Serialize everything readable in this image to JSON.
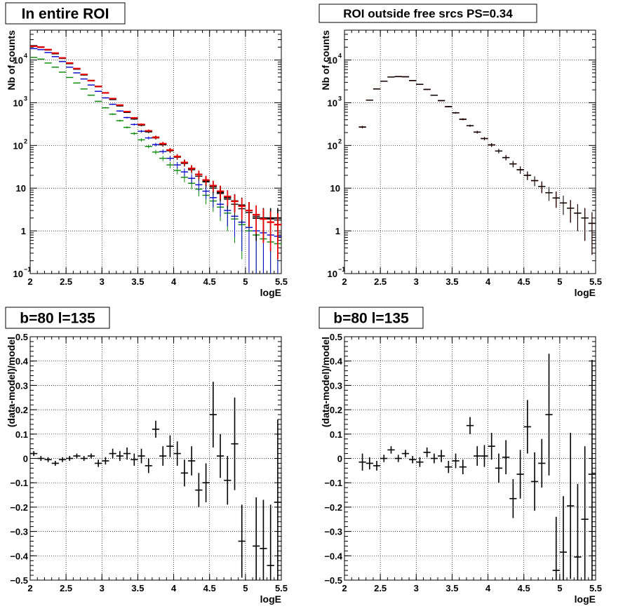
{
  "chart_data": [
    {
      "type": "scatter",
      "title": "In entire ROI",
      "xlabel": "logE",
      "ylabel": "Nb of counts",
      "xlim": [
        2,
        5.5
      ],
      "ylim": [
        0.1,
        50000
      ],
      "yscale": "log",
      "grid": true,
      "xticks": [
        "2",
        "2.5",
        "3",
        "3.5",
        "4",
        "4.5",
        "5",
        "5.5"
      ],
      "yticks": [
        {
          "v": 0.1,
          "base": "10",
          "exp": "−1"
        },
        {
          "v": 1,
          "base": "1",
          "exp": ""
        },
        {
          "v": 10,
          "base": "10",
          "exp": ""
        },
        {
          "v": 100,
          "base": "10",
          "exp": "2"
        },
        {
          "v": 1000,
          "base": "10",
          "exp": "3"
        },
        {
          "v": 10000,
          "base": "10",
          "exp": "4"
        }
      ],
      "series": [
        {
          "color": "#008800",
          "x": [
            2.05,
            2.15,
            2.25,
            2.35,
            2.45,
            2.55,
            2.65,
            2.75,
            2.85,
            2.95,
            3.05,
            3.15,
            3.25,
            3.35,
            3.45,
            3.55,
            3.65,
            3.75,
            3.85,
            3.95,
            4.05,
            4.15,
            4.25,
            4.35,
            4.45,
            4.55,
            4.65,
            4.75,
            4.85,
            4.95,
            5.05,
            5.15,
            5.25,
            5.35,
            5.45
          ],
          "y": [
            11500,
            10500,
            8500,
            6800,
            5200,
            3900,
            2900,
            2100,
            1500,
            1080,
            760,
            540,
            380,
            265,
            190,
            135,
            95,
            70,
            50,
            35,
            26,
            18,
            13,
            9.5,
            6.8,
            5,
            3.6,
            2.6,
            1.9,
            1.4,
            1.0,
            0.8,
            0.65,
            0.55,
            0.5
          ]
        },
        {
          "color": "#0000cc",
          "x": [
            2.05,
            2.15,
            2.25,
            2.35,
            2.45,
            2.55,
            2.65,
            2.75,
            2.85,
            2.95,
            3.05,
            3.15,
            3.25,
            3.35,
            3.45,
            3.55,
            3.65,
            3.75,
            3.85,
            3.95,
            4.05,
            4.15,
            4.25,
            4.35,
            4.45,
            4.55,
            4.65,
            4.75,
            4.85,
            4.95,
            5.05,
            5.15,
            5.25,
            5.35,
            5.45
          ],
          "y": [
            18500,
            17500,
            15000,
            12000,
            9200,
            6800,
            5000,
            3600,
            2600,
            1850,
            1300,
            920,
            640,
            450,
            310,
            215,
            150,
            105,
            72,
            50,
            35,
            24,
            17,
            12,
            8.5,
            6,
            4.2,
            3,
            2.2,
            1.6,
            1.2,
            1.0,
            0.9,
            0.8,
            0.75
          ]
        },
        {
          "color": "#000000",
          "x": [
            2.05,
            2.15,
            2.25,
            2.35,
            2.45,
            2.55,
            2.65,
            2.75,
            2.85,
            2.95,
            3.05,
            3.15,
            3.25,
            3.35,
            3.45,
            3.55,
            3.65,
            3.75,
            3.85,
            3.95,
            4.05,
            4.15,
            4.25,
            4.35,
            4.45,
            4.55,
            4.65,
            4.75,
            4.85,
            4.95,
            5.05,
            5.15,
            5.25,
            5.35,
            5.45
          ],
          "y": [
            21000,
            20000,
            17500,
            14000,
            11000,
            8300,
            6100,
            4500,
            3300,
            2400,
            1700,
            1200,
            850,
            600,
            420,
            300,
            210,
            150,
            105,
            75,
            53,
            38,
            27,
            19,
            14,
            10,
            7.5,
            5.5,
            4.2,
            3.3,
            2.7,
            2.2,
            2.0,
            1.9,
            1.8
          ]
        },
        {
          "color": "#ee0000",
          "x": [
            2.05,
            2.15,
            2.25,
            2.35,
            2.45,
            2.55,
            2.65,
            2.75,
            2.85,
            2.95,
            3.05,
            3.15,
            3.25,
            3.35,
            3.45,
            3.55,
            3.65,
            3.75,
            3.85,
            3.95,
            4.05,
            4.15,
            4.25,
            4.35,
            4.45,
            4.55,
            4.65,
            4.75,
            4.85,
            4.95,
            5.05,
            5.15,
            5.25,
            5.35,
            5.45
          ],
          "y": [
            21000,
            20000,
            17500,
            14500,
            11200,
            8500,
            6300,
            4600,
            3300,
            2400,
            1700,
            1250,
            880,
            620,
            440,
            310,
            220,
            155,
            110,
            78,
            55,
            40,
            29,
            21,
            15.5,
            11.5,
            8.5,
            6.4,
            4.9,
            3.8,
            3,
            2.4,
            1.9,
            1.6,
            1.4
          ]
        },
        {
          "color": "#000000",
          "x": [
            2.05,
            2.15,
            2.25,
            2.35,
            2.45,
            2.55,
            2.65,
            2.75,
            2.85,
            2.95,
            3.05,
            3.15,
            3.25,
            3.35,
            3.45,
            3.55,
            3.65,
            3.75,
            3.85,
            3.95,
            4.05,
            4.15,
            4.25,
            4.35,
            4.45,
            4.55,
            4.65,
            4.75,
            4.85,
            4.95,
            5.05,
            5.15,
            5.25,
            5.35,
            5.45
          ],
          "y": [
            21500,
            20000,
            17300,
            14200,
            11100,
            8300,
            6200,
            4500,
            3300,
            2400,
            1700,
            1200,
            850,
            600,
            420,
            300,
            210,
            155,
            105,
            78,
            55,
            40,
            29,
            21,
            15,
            11,
            8,
            6,
            5,
            4,
            3,
            2,
            2,
            2,
            2
          ]
        },
        {
          "color": "#ee0000",
          "x": [
            2.05,
            2.15,
            2.25,
            2.35,
            2.45,
            2.55,
            2.65,
            2.75,
            2.85,
            2.95,
            3.05,
            3.15,
            3.25,
            3.35,
            3.45,
            3.55,
            3.65,
            3.75,
            3.85,
            3.95,
            4.05,
            4.15,
            4.25,
            4.35,
            4.45,
            4.55,
            4.65,
            4.75,
            4.85,
            4.95,
            5.05,
            5.15,
            5.25,
            5.35,
            5.45
          ],
          "y": [
            21000,
            20000,
            17500,
            14500,
            11200,
            8500,
            6300,
            4600,
            3300,
            2400,
            1700,
            1250,
            880,
            620,
            440,
            310,
            220,
            155,
            110,
            78,
            55,
            40,
            29,
            21,
            15.5,
            11.5,
            8.5,
            6.4,
            4.9,
            3.8,
            3,
            2.4,
            1.9,
            1.6,
            1.4
          ]
        }
      ]
    },
    {
      "type": "scatter",
      "title": "ROI outside free srcs PS=0.34",
      "xlabel": "logE",
      "ylabel": "Nb of counts",
      "xlim": [
        2,
        5.5
      ],
      "ylim": [
        0.1,
        50000
      ],
      "yscale": "log",
      "grid": true,
      "xticks": [
        "2",
        "2.5",
        "3",
        "3.5",
        "4",
        "4.5",
        "5",
        "5.5"
      ],
      "yticks": [
        {
          "v": 0.1,
          "base": "10",
          "exp": "−1"
        },
        {
          "v": 1,
          "base": "1",
          "exp": ""
        },
        {
          "v": 10,
          "base": "10",
          "exp": ""
        },
        {
          "v": 100,
          "base": "10",
          "exp": "2"
        },
        {
          "v": 1000,
          "base": "10",
          "exp": "3"
        },
        {
          "v": 10000,
          "base": "10",
          "exp": "4"
        }
      ],
      "series": [
        {
          "color": "#000000",
          "x": [
            2.25,
            2.35,
            2.45,
            2.55,
            2.65,
            2.75,
            2.85,
            2.95,
            3.05,
            3.15,
            3.25,
            3.35,
            3.45,
            3.55,
            3.65,
            3.75,
            3.85,
            3.95,
            4.05,
            4.15,
            4.25,
            4.35,
            4.45,
            4.55,
            4.65,
            4.75,
            4.85,
            4.95,
            5.05,
            5.15,
            5.25,
            5.35,
            5.45
          ],
          "y": [
            270,
            1150,
            2100,
            3200,
            4000,
            4100,
            4050,
            3300,
            2700,
            2050,
            1500,
            1120,
            810,
            580,
            410,
            290,
            205,
            145,
            103,
            74,
            52,
            37,
            27,
            20,
            15,
            11,
            7.8,
            5.9,
            4.5,
            3.4,
            2.6,
            2.0,
            1.5
          ]
        },
        {
          "color": "#ee0000",
          "x": [
            2.25,
            2.35,
            2.45,
            2.55,
            2.65,
            2.75,
            2.85,
            2.95,
            3.05,
            3.15,
            3.25,
            3.35,
            3.45,
            3.55,
            3.65,
            3.75,
            3.85,
            3.95,
            4.05,
            4.15,
            4.25,
            4.35,
            4.45,
            4.55,
            4.65,
            4.75,
            4.85,
            4.95,
            5.05,
            5.15,
            5.25,
            5.35,
            5.45
          ],
          "y": [
            270,
            1150,
            2100,
            3200,
            4000,
            4100,
            4050,
            3300,
            2700,
            2050,
            1500,
            1120,
            810,
            580,
            410,
            290,
            205,
            145,
            103,
            74,
            52,
            37,
            27,
            20,
            15,
            11,
            7.8,
            5.9,
            4.5,
            3.4,
            2.6,
            2.0,
            1.5
          ]
        },
        {
          "color": "#000000",
          "x": [
            2.25,
            2.35,
            2.45,
            2.55,
            2.65,
            2.75,
            2.85,
            2.95,
            3.05,
            3.15,
            3.25,
            3.35,
            3.45,
            3.55,
            3.65,
            3.75,
            3.85,
            3.95,
            4.05,
            4.15,
            4.25,
            4.35,
            4.45,
            4.55,
            4.65,
            4.75,
            4.85,
            4.95,
            5.05,
            5.15,
            5.25,
            5.35,
            5.45
          ],
          "y": [
            270,
            1150,
            2100,
            3200,
            4000,
            4100,
            4050,
            3300,
            2700,
            2050,
            1500,
            1120,
            810,
            580,
            410,
            290,
            205,
            145,
            103,
            74,
            52,
            37,
            27,
            20,
            15,
            11,
            7.8,
            5.9,
            4.5,
            3.4,
            2.6,
            2.0,
            1.5
          ]
        }
      ]
    },
    {
      "type": "scatter",
      "title": "b=80 l=135",
      "xlabel": "logE",
      "ylabel": "(data-model)/model",
      "xlim": [
        2,
        5.5
      ],
      "ylim": [
        -0.5,
        0.5
      ],
      "grid": true,
      "xticks": [
        "2",
        "2.5",
        "3",
        "3.5",
        "4",
        "4.5",
        "5",
        "5.5"
      ],
      "yticks": [
        "−0.5",
        "−0.4",
        "−0.3",
        "−0.2",
        "−0.1",
        "0",
        "0.1",
        "0.2",
        "0.3",
        "0.4",
        "0.5"
      ],
      "points": {
        "x": [
          2.05,
          2.15,
          2.25,
          2.35,
          2.45,
          2.55,
          2.65,
          2.75,
          2.85,
          2.95,
          3.05,
          3.15,
          3.25,
          3.35,
          3.45,
          3.55,
          3.65,
          3.75,
          3.85,
          3.95,
          4.05,
          4.15,
          4.25,
          4.35,
          4.45,
          4.55,
          4.65,
          4.75,
          4.85,
          4.95,
          5.05,
          5.15,
          5.25,
          5.35,
          5.45
        ],
        "y": [
          0.02,
          0.0,
          -0.005,
          -0.02,
          -0.005,
          0.0,
          0.01,
          0.0,
          0.01,
          -0.02,
          -0.01,
          0.02,
          0.01,
          0.02,
          -0.005,
          0.01,
          -0.03,
          0.12,
          0.01,
          0.05,
          0.02,
          -0.06,
          -0.01,
          -0.13,
          -0.1,
          0.18,
          0.01,
          -0.09,
          0.06,
          -0.34,
          null,
          -0.36,
          -0.37,
          -0.44,
          -0.18
        ],
        "err": [
          0.01,
          0.01,
          0.01,
          0.01,
          0.01,
          0.01,
          0.01,
          0.01,
          0.01,
          0.015,
          0.015,
          0.02,
          0.02,
          0.025,
          0.025,
          0.03,
          0.03,
          0.035,
          0.04,
          0.045,
          0.05,
          0.055,
          0.06,
          0.07,
          0.08,
          0.135,
          0.09,
          0.1,
          0.19,
          0.15,
          null,
          0.2,
          0.2,
          0.25,
          0.34
        ]
      }
    },
    {
      "type": "scatter",
      "title": "b=80 l=135",
      "xlabel": "logE",
      "ylabel": "(data-model)/model",
      "xlim": [
        2,
        5.5
      ],
      "ylim": [
        -0.5,
        0.5
      ],
      "grid": true,
      "xticks": [
        "2",
        "2.5",
        "3",
        "3.5",
        "4",
        "4.5",
        "5",
        "5.5"
      ],
      "yticks": [
        "−0.5",
        "−0.4",
        "−0.3",
        "−0.2",
        "−0.1",
        "0",
        "0.1",
        "0.2",
        "0.3",
        "0.4",
        "0.5"
      ],
      "points": {
        "x": [
          2.25,
          2.35,
          2.45,
          2.55,
          2.65,
          2.75,
          2.85,
          2.95,
          3.05,
          3.15,
          3.25,
          3.35,
          3.45,
          3.55,
          3.65,
          3.75,
          3.85,
          3.95,
          4.05,
          4.15,
          4.25,
          4.35,
          4.45,
          4.55,
          4.65,
          4.75,
          4.85,
          4.95,
          5.05,
          5.15,
          5.25,
          5.35,
          5.45
        ],
        "y": [
          -0.015,
          -0.02,
          -0.03,
          0.0,
          0.035,
          0.0,
          0.02,
          -0.005,
          -0.015,
          0.025,
          0.0,
          0.01,
          -0.035,
          -0.01,
          -0.035,
          0.135,
          0.01,
          0.01,
          0.05,
          -0.04,
          0.005,
          -0.165,
          -0.065,
          0.13,
          -0.095,
          -0.02,
          0.18,
          -0.46,
          -0.385,
          -0.195,
          -0.405,
          -0.25,
          -0.065
        ],
        "err": [
          0.035,
          0.025,
          0.02,
          0.015,
          0.015,
          0.015,
          0.015,
          0.015,
          0.02,
          0.02,
          0.02,
          0.025,
          0.025,
          0.03,
          0.03,
          0.035,
          0.04,
          0.045,
          0.055,
          0.06,
          0.07,
          0.08,
          0.1,
          0.11,
          0.12,
          0.1,
          0.25,
          0.22,
          0.23,
          0.3,
          0.3,
          0.3,
          0.47
        ]
      }
    }
  ]
}
